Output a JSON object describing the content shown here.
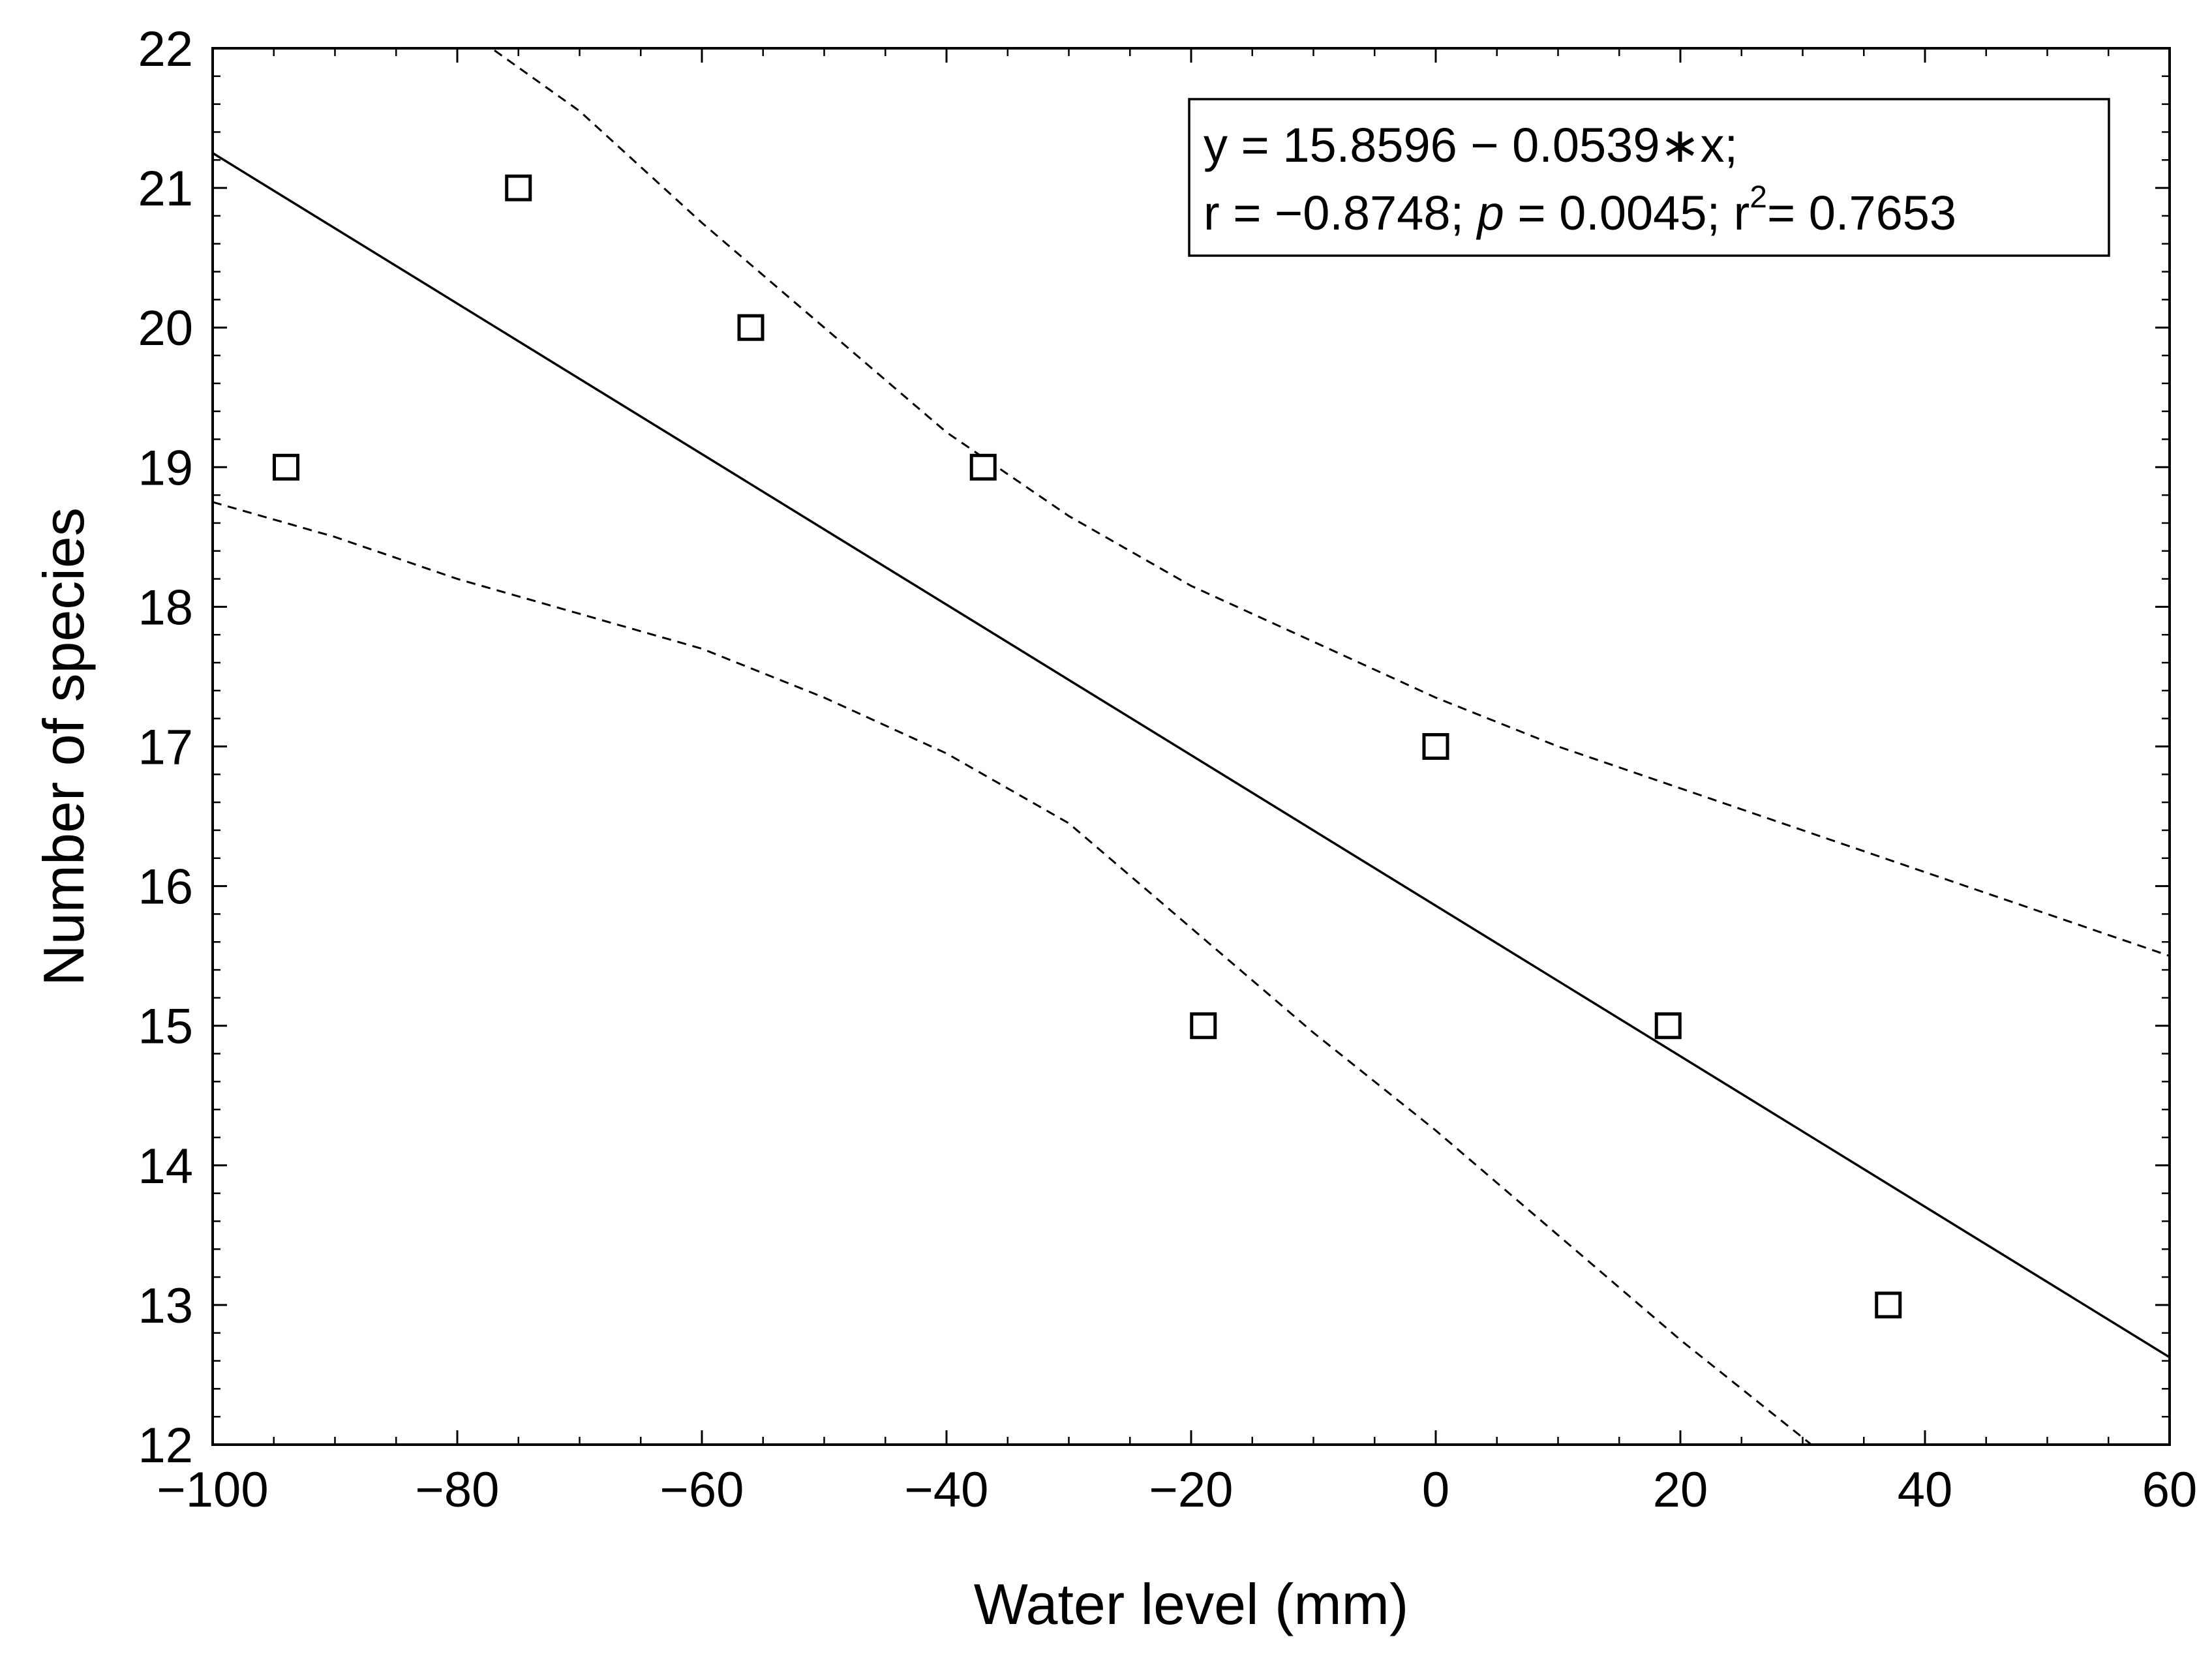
{
  "chart_data": {
    "type": "scatter",
    "title": "",
    "xlabel": "Water level (mm)",
    "ylabel": "Number of species",
    "xlim": [
      -100,
      60
    ],
    "ylim": [
      12,
      22
    ],
    "x_ticks": [
      -100,
      -80,
      -60,
      -40,
      -20,
      0,
      20,
      40,
      60
    ],
    "x_tick_labels": [
      "−100",
      "−80",
      "−60",
      "−40",
      "−20",
      "0",
      "20",
      "40",
      "60"
    ],
    "y_ticks": [
      12,
      13,
      14,
      15,
      16,
      17,
      18,
      19,
      20,
      21,
      22
    ],
    "y_tick_labels": [
      "12",
      "13",
      "14",
      "15",
      "16",
      "17",
      "18",
      "19",
      "20",
      "21",
      "22"
    ],
    "grid": false,
    "marker": "open-square",
    "points": [
      {
        "x": -94,
        "y": 19
      },
      {
        "x": -75,
        "y": 21
      },
      {
        "x": -56,
        "y": 20
      },
      {
        "x": -37,
        "y": 19
      },
      {
        "x": -19,
        "y": 15
      },
      {
        "x": 0,
        "y": 17
      },
      {
        "x": 19,
        "y": 15
      },
      {
        "x": 37,
        "y": 13
      }
    ],
    "regression": {
      "intercept": 15.8596,
      "slope": -0.0539,
      "style": "solid"
    },
    "confidence_band": {
      "style": "dashed",
      "upper": [
        [
          -78,
          22.05
        ],
        [
          -70,
          21.55
        ],
        [
          -60,
          20.75
        ],
        [
          -50,
          20.0
        ],
        [
          -40,
          19.25
        ],
        [
          -30,
          18.65
        ],
        [
          -20,
          18.15
        ],
        [
          -10,
          17.75
        ],
        [
          0,
          17.35
        ],
        [
          10,
          17.0
        ],
        [
          20,
          16.7
        ],
        [
          30,
          16.4
        ],
        [
          40,
          16.1
        ],
        [
          50,
          15.8
        ],
        [
          60,
          15.5
        ]
      ],
      "lower": [
        [
          -100,
          18.75
        ],
        [
          -90,
          18.5
        ],
        [
          -80,
          18.2
        ],
        [
          -70,
          17.95
        ],
        [
          -60,
          17.7
        ],
        [
          -50,
          17.35
        ],
        [
          -40,
          16.95
        ],
        [
          -30,
          16.45
        ],
        [
          -20,
          15.7
        ],
        [
          -10,
          14.95
        ],
        [
          0,
          14.25
        ],
        [
          10,
          13.5
        ],
        [
          20,
          12.75
        ],
        [
          31,
          11.98
        ]
      ]
    },
    "legend": {
      "position": "top-right",
      "line1": "y = 15.8596 − 0.0539∗x;",
      "line2_r": "r = −0.8748; ",
      "line2_p_symbol": "p",
      "line2_p_value": " = 0.0045; r",
      "line2_r2_exp": "2",
      "line2_r2_value": "= 0.7653"
    }
  }
}
